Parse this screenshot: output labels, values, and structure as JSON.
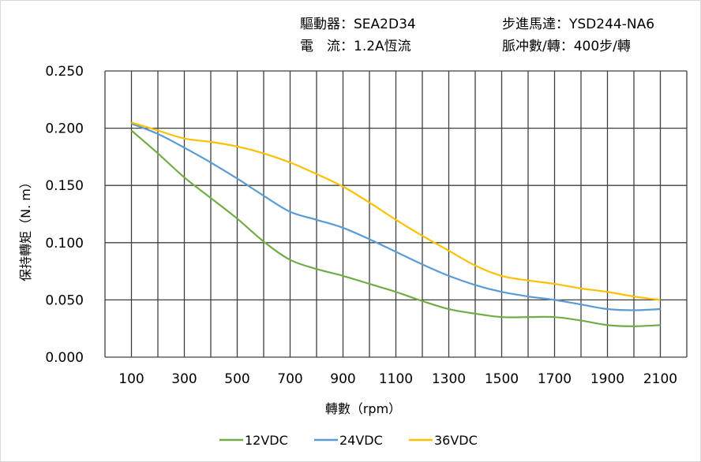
{
  "header": {
    "driver_label": "驅動器：SEA2D34",
    "current_label": "電　流：1.2A恆流",
    "motor_label": "步進馬達：YSD244-NA6",
    "pulse_label": "脈冲數/轉：400步/轉"
  },
  "chart_data": {
    "type": "line",
    "title": "",
    "xlabel": "轉數（rpm）",
    "ylabel": "保持轉矩（N. m）",
    "xlim": [
      0,
      2200
    ],
    "ylim": [
      0,
      0.25
    ],
    "grid": true,
    "x_ticks": [
      100,
      300,
      500,
      700,
      900,
      1100,
      1300,
      1500,
      1700,
      1900,
      2100
    ],
    "y_ticks": [
      "0.000",
      "0.050",
      "0.100",
      "0.150",
      "0.200",
      "0.250"
    ],
    "legend_position": "bottom",
    "x": [
      100,
      200,
      300,
      400,
      500,
      600,
      700,
      800,
      900,
      1000,
      1100,
      1200,
      1300,
      1400,
      1500,
      1600,
      1700,
      1800,
      1900,
      2000,
      2100
    ],
    "series": [
      {
        "name": "12VDC",
        "color": "#70ad47",
        "values": [
          0.198,
          0.178,
          0.157,
          0.139,
          0.121,
          0.101,
          0.085,
          0.077,
          0.071,
          0.064,
          0.057,
          0.049,
          0.042,
          0.038,
          0.035,
          0.035,
          0.035,
          0.032,
          0.028,
          0.027,
          0.028
        ]
      },
      {
        "name": "24VDC",
        "color": "#5b9bd5",
        "values": [
          0.204,
          0.195,
          0.183,
          0.17,
          0.156,
          0.141,
          0.127,
          0.12,
          0.113,
          0.103,
          0.092,
          0.081,
          0.071,
          0.063,
          0.057,
          0.053,
          0.05,
          0.046,
          0.042,
          0.041,
          0.042
        ]
      },
      {
        "name": "36VDC",
        "color": "#ffc000",
        "values": [
          0.205,
          0.198,
          0.191,
          0.188,
          0.184,
          0.178,
          0.17,
          0.16,
          0.149,
          0.135,
          0.12,
          0.106,
          0.093,
          0.08,
          0.071,
          0.067,
          0.064,
          0.06,
          0.057,
          0.053,
          0.05
        ]
      }
    ]
  }
}
